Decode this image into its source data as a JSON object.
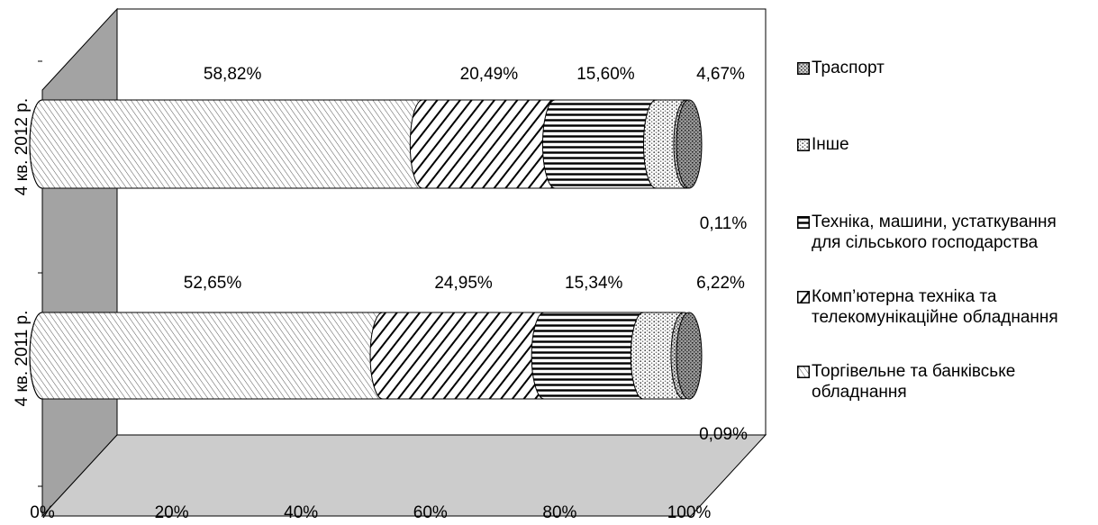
{
  "chart_data": {
    "type": "bar",
    "orientation": "horizontal",
    "stacked": "percent",
    "style": "3d-cylinder",
    "categories": [
      "4 кв. 2011 р.",
      "4 кв. 2012 р."
    ],
    "x_ticks": [
      "0%",
      "20%",
      "40%",
      "60%",
      "80%",
      "100%"
    ],
    "xlim": [
      0,
      100
    ],
    "legend_position": "right",
    "series": [
      {
        "name": "Торгівельне та банківське обладнання",
        "values": [
          52.65,
          58.82
        ],
        "labels": [
          "52,65%",
          "58,82%"
        ]
      },
      {
        "name": "Комп’ютерна техніка та телекомунікаційне обладнання",
        "values": [
          24.95,
          20.49
        ],
        "labels": [
          "24,95%",
          "20,49%"
        ]
      },
      {
        "name": "Техніка, машини, устаткування для сільського господарства",
        "values": [
          15.34,
          15.6
        ],
        "labels": [
          "15,34%",
          "15,60%"
        ]
      },
      {
        "name": "Інше",
        "values": [
          6.22,
          4.67
        ],
        "labels": [
          "6,22%",
          "4,67%"
        ]
      },
      {
        "name": "Траспорт",
        "values": [
          0.09,
          0.11
        ],
        "labels": [
          "0,09%",
          "0,11%"
        ]
      }
    ],
    "legend_order": [
      "Траспорт",
      "Інше",
      "Техніка, машини, устаткування для сільського господарства",
      "Комп’ютерна техніка та телекомунікаційне обладнання",
      "Торгівельне та банківське обладнання"
    ],
    "legend_text": [
      "Траспорт",
      "Інше",
      "Техніка, машини, устаткування\nдля сільського господарства",
      "Комп’ютерна техніка та\nтелекомунікаційне обладнання",
      "Торгівельне та банківське\nобладнання"
    ]
  }
}
